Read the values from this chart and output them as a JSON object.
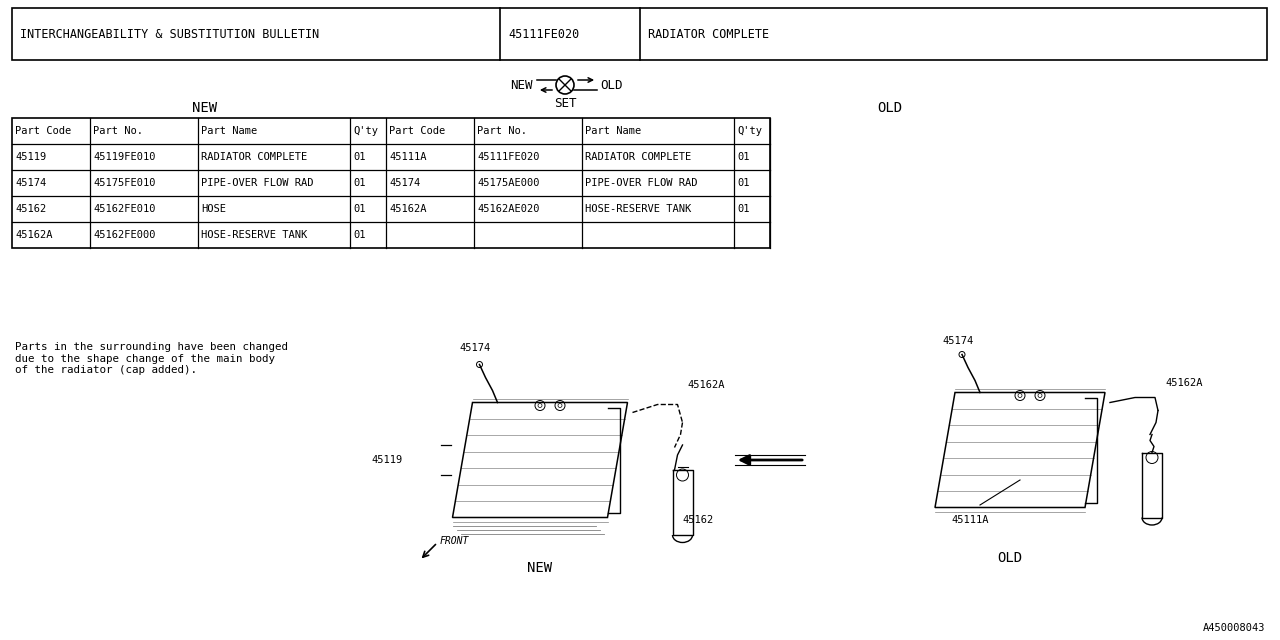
{
  "bg_color": "#ffffff",
  "line_color": "#000000",
  "text_color": "#000000",
  "fig_width": 12.8,
  "fig_height": 6.4,
  "header": {
    "col1": "INTERCHANGEABILITY & SUBSTITUTION BULLETIN",
    "col2": "45111FE020",
    "col3": "RADIATOR COMPLETE"
  },
  "table_new_rows": [
    [
      "45119",
      "45119FE010",
      "RADIATOR COMPLETE",
      "01"
    ],
    [
      "45174",
      "45175FE010",
      "PIPE-OVER FLOW RAD",
      "01"
    ],
    [
      "45162",
      "45162FE010",
      "HOSE",
      "01"
    ],
    [
      "45162A",
      "45162FE000",
      "HOSE-RESERVE TANK",
      "01"
    ]
  ],
  "table_old_rows": [
    [
      "45111A",
      "45111FE020",
      "RADIATOR COMPLETE",
      "01"
    ],
    [
      "45174",
      "45175AE000",
      "PIPE-OVER FLOW RAD",
      "01"
    ],
    [
      "45162A",
      "45162AE020",
      "HOSE-RESERVE TANK",
      "01"
    ]
  ],
  "note": "Parts in the surrounding have been changed\ndue to the shape change of the main body\nof the radiator (cap added).",
  "footer": "A450008043"
}
